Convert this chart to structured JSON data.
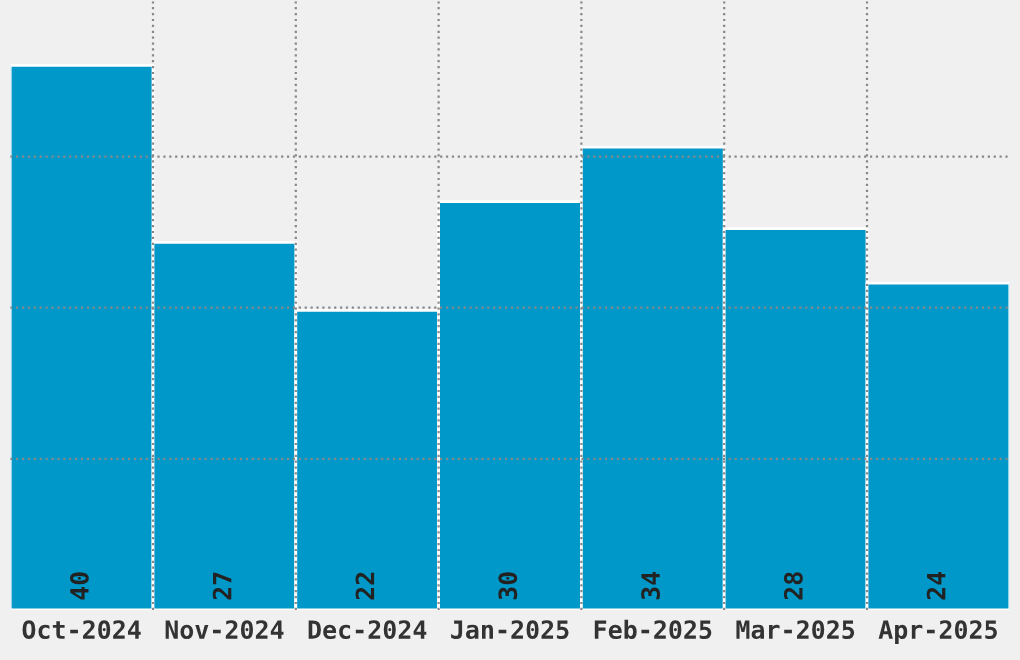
{
  "chart_data": {
    "type": "bar",
    "categories": [
      "Oct-2024",
      "Nov-2024",
      "Dec-2024",
      "Jan-2025",
      "Feb-2025",
      "Mar-2025",
      "Apr-2025"
    ],
    "values": [
      40,
      27,
      22,
      30,
      34,
      28,
      24
    ],
    "color": "#0098c8",
    "data_labels": true,
    "ylim": [
      0,
      44.7
    ],
    "yticks": [
      {
        "value": 11.1,
        "label": null
      },
      {
        "value": 22.2,
        "label": null
      },
      {
        "value": 33.3,
        "label": null
      }
    ],
    "grid": true
  }
}
